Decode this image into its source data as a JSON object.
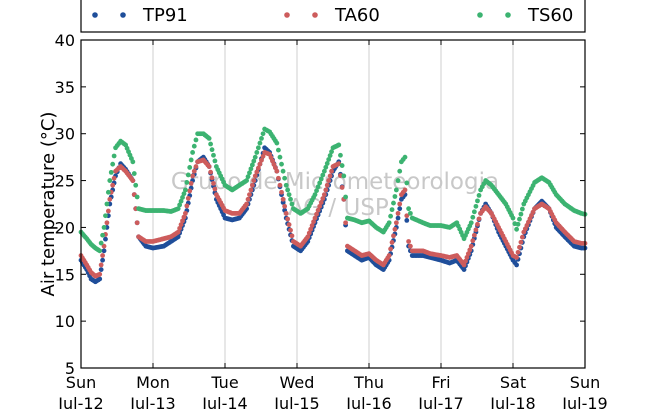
{
  "chart_data": {
    "type": "scatter",
    "ylabel": "Air temperature (°C)",
    "ylim": [
      5,
      40
    ],
    "yticks": [
      5,
      10,
      15,
      20,
      25,
      30,
      35,
      40
    ],
    "xlim": [
      0,
      7
    ],
    "xticks": [
      {
        "x": 0,
        "day": "Sun",
        "date": "Jul-12"
      },
      {
        "x": 1,
        "day": "Mon",
        "date": "Jul-13"
      },
      {
        "x": 2,
        "day": "Tue",
        "date": "Jul-14"
      },
      {
        "x": 3,
        "day": "Wed",
        "date": "Jul-15"
      },
      {
        "x": 4,
        "day": "Thu",
        "date": "Jul-16"
      },
      {
        "x": 5,
        "day": "Fri",
        "date": "Jul-17"
      },
      {
        "x": 6,
        "day": "Sat",
        "date": "Jul-18"
      },
      {
        "x": 7,
        "day": "Sun",
        "date": "Jul-19"
      }
    ],
    "grid": "vertical",
    "legend": "top",
    "watermark": [
      "Grupo de Micrometeorologia",
      "IAG / USP"
    ],
    "series": [
      {
        "name": "TP91",
        "color": "#1f4e9a",
        "points": [
          [
            0.0,
            16.5
          ],
          [
            0.08,
            15.5
          ],
          [
            0.14,
            14.5
          ],
          [
            0.2,
            14.2
          ],
          [
            0.26,
            14.5
          ],
          [
            0.32,
            17.5
          ],
          [
            0.4,
            22.5
          ],
          [
            0.48,
            25.5
          ],
          [
            0.55,
            26.8
          ],
          [
            0.62,
            26.2
          ],
          [
            0.72,
            25
          ],
          [
            0.8,
            19
          ],
          [
            0.9,
            18
          ],
          [
            1.0,
            17.8
          ],
          [
            1.15,
            18
          ],
          [
            1.25,
            18.5
          ],
          [
            1.35,
            19
          ],
          [
            1.45,
            21
          ],
          [
            1.55,
            25
          ],
          [
            1.62,
            27
          ],
          [
            1.7,
            27.5
          ],
          [
            1.78,
            26.5
          ],
          [
            1.88,
            23
          ],
          [
            2.0,
            21
          ],
          [
            2.1,
            20.8
          ],
          [
            2.2,
            21
          ],
          [
            2.3,
            22
          ],
          [
            2.42,
            25
          ],
          [
            2.55,
            28.5
          ],
          [
            2.62,
            28
          ],
          [
            2.72,
            26
          ],
          [
            2.85,
            21
          ],
          [
            2.95,
            18
          ],
          [
            3.05,
            17.5
          ],
          [
            3.15,
            18.5
          ],
          [
            3.25,
            20.5
          ],
          [
            3.38,
            23
          ],
          [
            3.5,
            26
          ],
          [
            3.58,
            27
          ],
          [
            3.65,
            23
          ],
          [
            3.7,
            17.5
          ],
          [
            3.8,
            17
          ],
          [
            3.9,
            16.5
          ],
          [
            4.0,
            16.8
          ],
          [
            4.1,
            16
          ],
          [
            4.2,
            15.5
          ],
          [
            4.28,
            16.5
          ],
          [
            4.38,
            20
          ],
          [
            4.45,
            23
          ],
          [
            4.5,
            23.5
          ],
          [
            4.55,
            18
          ],
          [
            4.6,
            17
          ],
          [
            4.75,
            17
          ],
          [
            4.85,
            16.8
          ],
          [
            5.0,
            16.5
          ],
          [
            5.12,
            16.2
          ],
          [
            5.22,
            16.5
          ],
          [
            5.32,
            15.5
          ],
          [
            5.42,
            17.5
          ],
          [
            5.55,
            21.5
          ],
          [
            5.62,
            22.5
          ],
          [
            5.7,
            21.5
          ],
          [
            5.8,
            19.5
          ],
          [
            5.9,
            18
          ],
          [
            6.0,
            16.5
          ],
          [
            6.05,
            16
          ],
          [
            6.15,
            19
          ],
          [
            6.3,
            22
          ],
          [
            6.4,
            22.8
          ],
          [
            6.5,
            22
          ],
          [
            6.6,
            20
          ],
          [
            6.72,
            19
          ],
          [
            6.85,
            18
          ],
          [
            6.95,
            17.8
          ],
          [
            7.0,
            17.8
          ]
        ]
      },
      {
        "name": "TA60",
        "color": "#cd5c5c",
        "points": [
          [
            0.0,
            17
          ],
          [
            0.08,
            16
          ],
          [
            0.14,
            15.2
          ],
          [
            0.2,
            14.8
          ],
          [
            0.26,
            15
          ],
          [
            0.32,
            18
          ],
          [
            0.4,
            23
          ],
          [
            0.48,
            26
          ],
          [
            0.55,
            26.5
          ],
          [
            0.62,
            26
          ],
          [
            0.72,
            25
          ],
          [
            0.8,
            19
          ],
          [
            0.9,
            18.5
          ],
          [
            1.0,
            18.5
          ],
          [
            1.15,
            18.8
          ],
          [
            1.25,
            19
          ],
          [
            1.35,
            19.5
          ],
          [
            1.45,
            21.5
          ],
          [
            1.55,
            25.5
          ],
          [
            1.62,
            27
          ],
          [
            1.7,
            27.2
          ],
          [
            1.78,
            26.5
          ],
          [
            1.88,
            23.5
          ],
          [
            2.0,
            21.8
          ],
          [
            2.1,
            21.5
          ],
          [
            2.2,
            21.5
          ],
          [
            2.3,
            22.5
          ],
          [
            2.42,
            25.5
          ],
          [
            2.55,
            28
          ],
          [
            2.62,
            27.8
          ],
          [
            2.72,
            26
          ],
          [
            2.85,
            21.5
          ],
          [
            2.95,
            18.5
          ],
          [
            3.05,
            18
          ],
          [
            3.15,
            19
          ],
          [
            3.25,
            21
          ],
          [
            3.38,
            23.5
          ],
          [
            3.5,
            26.5
          ],
          [
            3.58,
            26.8
          ],
          [
            3.65,
            23
          ],
          [
            3.7,
            18
          ],
          [
            3.8,
            17.5
          ],
          [
            3.9,
            17
          ],
          [
            4.0,
            17.2
          ],
          [
            4.1,
            16.5
          ],
          [
            4.2,
            16
          ],
          [
            4.28,
            17
          ],
          [
            4.38,
            20.5
          ],
          [
            4.45,
            23.5
          ],
          [
            4.5,
            24
          ],
          [
            4.55,
            18.5
          ],
          [
            4.6,
            17.5
          ],
          [
            4.75,
            17.5
          ],
          [
            4.85,
            17.2
          ],
          [
            5.0,
            17
          ],
          [
            5.12,
            16.8
          ],
          [
            5.22,
            17
          ],
          [
            5.32,
            16
          ],
          [
            5.42,
            18
          ],
          [
            5.55,
            21.5
          ],
          [
            5.62,
            22.2
          ],
          [
            5.7,
            21.5
          ],
          [
            5.8,
            20
          ],
          [
            5.9,
            18.5
          ],
          [
            6.0,
            17
          ],
          [
            6.05,
            16.8
          ],
          [
            6.15,
            19.5
          ],
          [
            6.3,
            22
          ],
          [
            6.4,
            22.5
          ],
          [
            6.5,
            22
          ],
          [
            6.6,
            20.5
          ],
          [
            6.72,
            19.5
          ],
          [
            6.85,
            18.5
          ],
          [
            6.95,
            18.3
          ],
          [
            7.0,
            18.3
          ]
        ]
      },
      {
        "name": "TS60",
        "color": "#3cb371",
        "points": [
          [
            0.0,
            19.5
          ],
          [
            0.08,
            18.8
          ],
          [
            0.14,
            18.2
          ],
          [
            0.2,
            17.8
          ],
          [
            0.26,
            17.5
          ],
          [
            0.32,
            20
          ],
          [
            0.4,
            25
          ],
          [
            0.48,
            28.5
          ],
          [
            0.55,
            29.2
          ],
          [
            0.62,
            28.8
          ],
          [
            0.72,
            27
          ],
          [
            0.8,
            22
          ],
          [
            0.9,
            21.8
          ],
          [
            1.0,
            21.8
          ],
          [
            1.15,
            21.8
          ],
          [
            1.25,
            21.7
          ],
          [
            1.35,
            22
          ],
          [
            1.45,
            24
          ],
          [
            1.55,
            28
          ],
          [
            1.62,
            30
          ],
          [
            1.7,
            30
          ],
          [
            1.78,
            29.5
          ],
          [
            1.88,
            26.5
          ],
          [
            2.0,
            24.5
          ],
          [
            2.1,
            24
          ],
          [
            2.2,
            24.5
          ],
          [
            2.3,
            25
          ],
          [
            2.42,
            27.5
          ],
          [
            2.55,
            30.5
          ],
          [
            2.62,
            30.2
          ],
          [
            2.72,
            29
          ],
          [
            2.85,
            24.5
          ],
          [
            2.95,
            22
          ],
          [
            3.05,
            21.5
          ],
          [
            3.15,
            22
          ],
          [
            3.25,
            23.5
          ],
          [
            3.38,
            26
          ],
          [
            3.5,
            28.5
          ],
          [
            3.58,
            28.8
          ],
          [
            3.65,
            25.5
          ],
          [
            3.7,
            21
          ],
          [
            3.8,
            20.8
          ],
          [
            3.9,
            20.5
          ],
          [
            4.0,
            20.7
          ],
          [
            4.1,
            20
          ],
          [
            4.2,
            19.5
          ],
          [
            4.28,
            20.5
          ],
          [
            4.38,
            24
          ],
          [
            4.45,
            27
          ],
          [
            4.5,
            27.5
          ],
          [
            4.55,
            22
          ],
          [
            4.6,
            21
          ],
          [
            4.75,
            20.5
          ],
          [
            4.85,
            20.2
          ],
          [
            5.0,
            20.2
          ],
          [
            5.12,
            20
          ],
          [
            5.22,
            20.5
          ],
          [
            5.32,
            18.8
          ],
          [
            5.42,
            20.5
          ],
          [
            5.55,
            24
          ],
          [
            5.62,
            25
          ],
          [
            5.7,
            24.5
          ],
          [
            5.8,
            23.5
          ],
          [
            5.9,
            22.5
          ],
          [
            6.0,
            21
          ],
          [
            6.05,
            19.8
          ],
          [
            6.15,
            22.5
          ],
          [
            6.3,
            24.8
          ],
          [
            6.4,
            25.3
          ],
          [
            6.5,
            24.8
          ],
          [
            6.6,
            23.5
          ],
          [
            6.72,
            22.5
          ],
          [
            6.85,
            21.8
          ],
          [
            6.95,
            21.5
          ],
          [
            7.0,
            21.4
          ]
        ]
      }
    ]
  }
}
